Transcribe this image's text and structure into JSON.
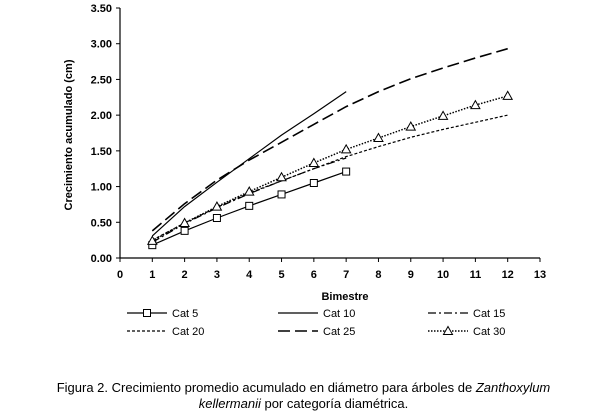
{
  "chart_data": {
    "type": "line",
    "xlabel": "Bimestre",
    "ylabel": "Crecimiento acumulado (cm)",
    "xlim": [
      0,
      13
    ],
    "ylim": [
      0,
      3.5
    ],
    "x_ticks": [
      "0",
      "1",
      "2",
      "3",
      "4",
      "5",
      "6",
      "7",
      "8",
      "9",
      "10",
      "11",
      "12",
      "13"
    ],
    "y_ticks": [
      "0.00",
      "0.50",
      "1.00",
      "1.50",
      "2.00",
      "2.50",
      "3.00",
      "3.50"
    ],
    "grid": false,
    "legend_position": "bottom",
    "series": [
      {
        "name": "Cat 5",
        "style": "solid-square-markers",
        "color": "#000000",
        "x": [
          1,
          2,
          3,
          4,
          5,
          6,
          7
        ],
        "y": [
          0.18,
          0.38,
          0.56,
          0.73,
          0.89,
          1.05,
          1.21
        ]
      },
      {
        "name": "Cat 10",
        "style": "solid",
        "color": "#000000",
        "x": [
          1,
          2,
          3,
          4,
          5,
          6,
          7
        ],
        "y": [
          0.31,
          0.72,
          1.06,
          1.39,
          1.72,
          2.02,
          2.33
        ]
      },
      {
        "name": "Cat 15",
        "style": "dash-dot",
        "color": "#000000",
        "x": [
          1,
          2,
          3,
          4,
          5,
          6,
          7
        ],
        "y": [
          0.22,
          0.48,
          0.7,
          0.9,
          1.08,
          1.25,
          1.4
        ]
      },
      {
        "name": "Cat 20",
        "style": "short-dash",
        "color": "#000000",
        "x": [
          1,
          2,
          3,
          4,
          5,
          6,
          7,
          8,
          9,
          10,
          11,
          12
        ],
        "y": [
          0.25,
          0.49,
          0.71,
          0.91,
          1.08,
          1.25,
          1.42,
          1.56,
          1.69,
          1.8,
          1.9,
          2.0
        ]
      },
      {
        "name": "Cat 25",
        "style": "long-dash",
        "color": "#000000",
        "x": [
          1,
          2,
          3,
          4,
          5,
          6,
          7,
          8,
          9,
          10,
          11,
          12
        ],
        "y": [
          0.38,
          0.76,
          1.09,
          1.37,
          1.62,
          1.87,
          2.12,
          2.33,
          2.51,
          2.66,
          2.8,
          2.93
        ]
      },
      {
        "name": "Cat 30",
        "style": "dotted-triangle-markers",
        "color": "#000000",
        "x": [
          1,
          2,
          3,
          4,
          5,
          6,
          7,
          8,
          9,
          10,
          11,
          12
        ],
        "y": [
          0.24,
          0.49,
          0.72,
          0.93,
          1.13,
          1.33,
          1.52,
          1.68,
          1.84,
          1.99,
          2.14,
          2.27
        ]
      }
    ]
  },
  "caption": {
    "prefix": "Figura 2. Crecimiento promedio acumulado en diámetro para árboles de ",
    "species_part1": "Zanthoxylum",
    "species_part2": "kellermanii",
    "suffix": " por categoría diamétrica."
  }
}
